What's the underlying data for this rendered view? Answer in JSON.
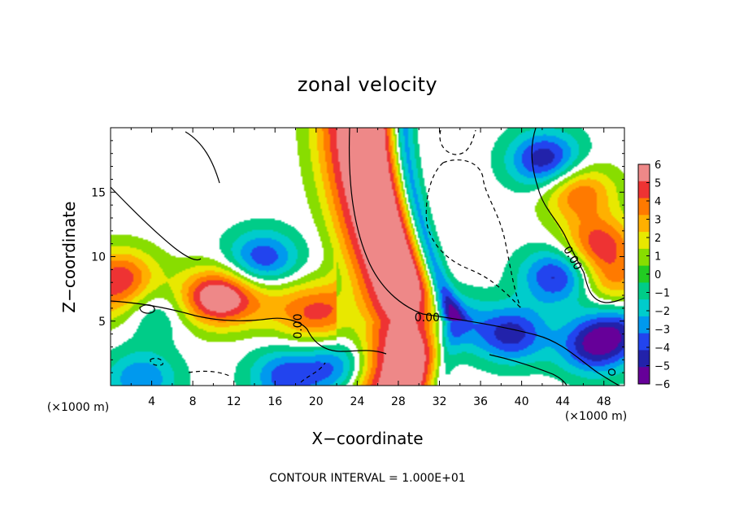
{
  "chart_data": {
    "type": "heatmap",
    "title": "zonal velocity",
    "xlabel": "X−coordinate",
    "ylabel": "Z−coordinate",
    "x_unit": "(×1000 m)",
    "y_unit": "(×1000 m)",
    "xlim": [
      0,
      50
    ],
    "ylim": [
      0,
      20
    ],
    "x_ticks": [
      4,
      8,
      12,
      16,
      20,
      24,
      28,
      32,
      36,
      40,
      44,
      48
    ],
    "x_tick_labels": [
      "4",
      "8",
      "12",
      "16",
      "20",
      "24",
      "28",
      "32",
      "36",
      "40",
      "44",
      "48"
    ],
    "y_ticks": [
      5,
      10,
      15
    ],
    "y_tick_labels": [
      "5",
      "10",
      "15"
    ],
    "grid": false,
    "colorbar": {
      "vmin": -6,
      "vmax": 6,
      "ticks": [
        6,
        5,
        4,
        3,
        2,
        1,
        0,
        -1,
        -2,
        -3,
        -4,
        -5,
        -6
      ],
      "tick_labels": [
        "6",
        "5",
        "4",
        "3",
        "2",
        "1",
        "0",
        "−1",
        "−2",
        "−3",
        "−4",
        "−5",
        "−6"
      ],
      "colors": [
        "#ee8888",
        "#ee3333",
        "#ff7a00",
        "#ffb000",
        "#e8e800",
        "#88dd00",
        "#22cc22",
        "#00cc88",
        "#00cccc",
        "#0099ee",
        "#2244ee",
        "#2222aa",
        "#660099"
      ]
    },
    "contour_labels": [
      {
        "text": "0.00",
        "x": 30.8,
        "z": 5.3
      },
      {
        "text": "0.00",
        "x": 18.2,
        "z": 4.6
      },
      {
        "text": "0.00",
        "x": 45.0,
        "z": 9.9
      }
    ],
    "field_features": [
      {
        "type": "jet",
        "z": [
          0.2,
          20
        ],
        "x_at_top": 23.0,
        "x_at_z5": 28.0,
        "amp": 6.0,
        "note": "strong positive band, red core"
      },
      {
        "type": "blob",
        "x": 14.8,
        "z": 9.8,
        "amp": -4.5
      },
      {
        "type": "blob",
        "x": 10.5,
        "z": 7.0,
        "amp": 5.0
      },
      {
        "type": "blob",
        "x": 4.5,
        "z": 6.0,
        "amp": -3.5
      },
      {
        "type": "blob",
        "x": 1.0,
        "z": 8.5,
        "amp": 4.5
      },
      {
        "type": "blob",
        "x": 20.0,
        "z": 5.0,
        "amp": 3.0
      },
      {
        "type": "blob",
        "x": 32.5,
        "z": 5.0,
        "amp": -4.0
      },
      {
        "type": "blob",
        "x": 39.0,
        "z": 4.0,
        "amp": -5.0
      },
      {
        "type": "blob",
        "x": 43.5,
        "z": 8.5,
        "amp": -5.0
      },
      {
        "type": "blob",
        "x": 42.3,
        "z": 17.5,
        "amp": -5.5
      },
      {
        "type": "blob",
        "x": 45.5,
        "z": 15.0,
        "amp": 4.5
      },
      {
        "type": "blob",
        "x": 47.5,
        "z": 11.0,
        "amp": 5.0
      },
      {
        "type": "blob",
        "x": 49.0,
        "z": 8.0,
        "amp": 3.5
      },
      {
        "type": "blob",
        "x": 47.0,
        "z": 3.0,
        "amp": -5.0
      },
      {
        "type": "blob",
        "x": 49.5,
        "z": 4.5,
        "amp": -3.5
      },
      {
        "type": "blob",
        "x": 17.0,
        "z": 0.7,
        "amp": -4.0
      },
      {
        "type": "blob",
        "x": 22.0,
        "z": 1.5,
        "amp": -3.5
      },
      {
        "type": "blob",
        "x": 3.0,
        "z": 0.5,
        "amp": -3.5
      }
    ]
  },
  "contour_interval_text": "CONTOUR INTERVAL = 1.000E+01"
}
